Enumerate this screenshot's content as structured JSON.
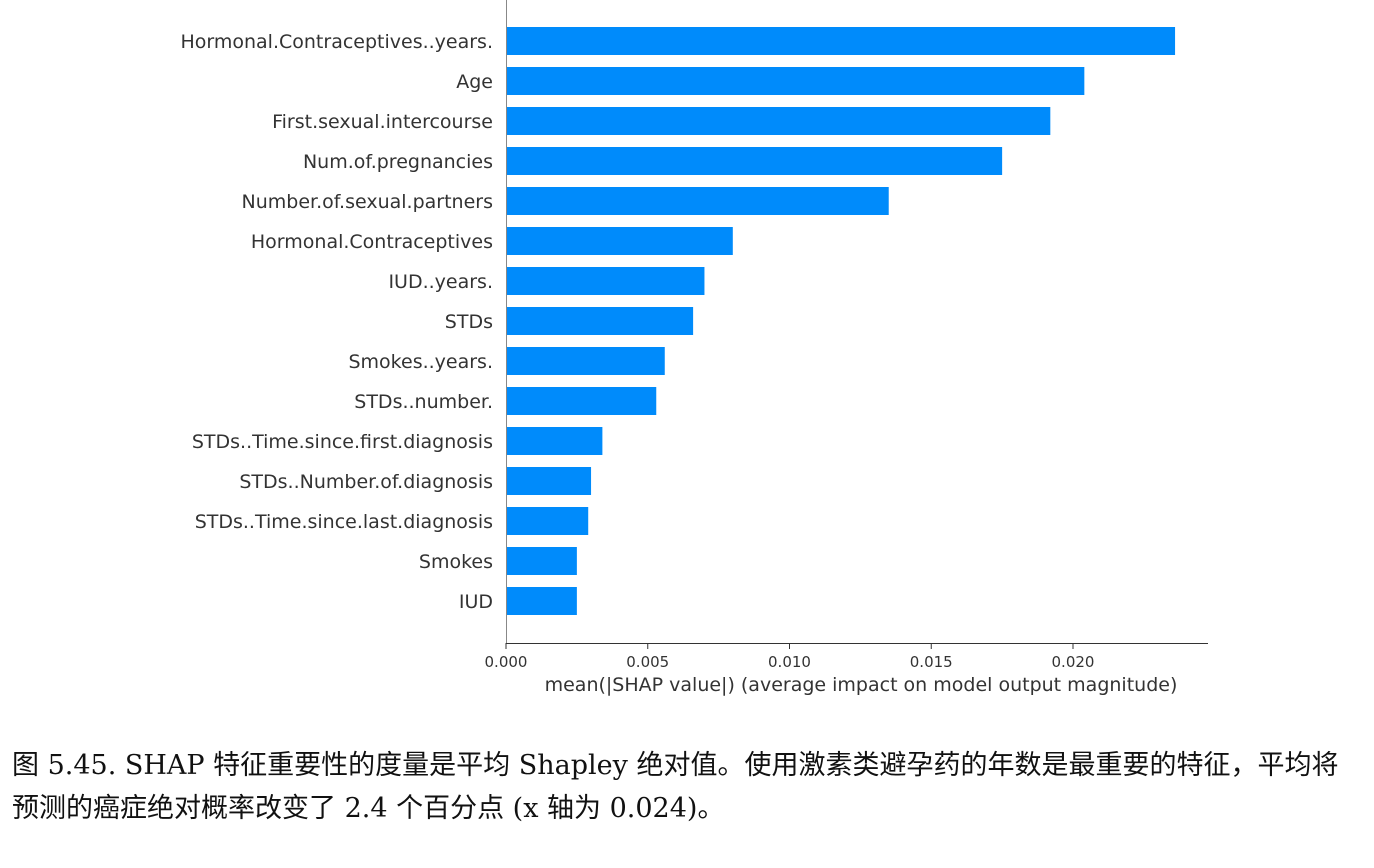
{
  "chart_data": {
    "type": "bar",
    "orientation": "horizontal",
    "categories": [
      "Hormonal.Contraceptives..years.",
      "Age",
      "First.sexual.intercourse",
      "Num.of.pregnancies",
      "Number.of.sexual.partners",
      "Hormonal.Contraceptives",
      "IUD..years.",
      "STDs",
      "Smokes..years.",
      "STDs..number.",
      "STDs..Time.since.first.diagnosis",
      "STDs..Number.of.diagnosis",
      "STDs..Time.since.last.diagnosis",
      "Smokes",
      "IUD"
    ],
    "values": [
      0.0236,
      0.0204,
      0.0192,
      0.0175,
      0.0135,
      0.008,
      0.007,
      0.0066,
      0.0056,
      0.0053,
      0.0034,
      0.003,
      0.0029,
      0.0025,
      0.0025
    ],
    "xlim": [
      0,
      0.025
    ],
    "xticks": [
      "0.000",
      "0.005",
      "0.010",
      "0.015",
      "0.020"
    ],
    "xtick_values": [
      0,
      0.005,
      0.01,
      0.015,
      0.02
    ],
    "xlabel": "mean(|SHAP value|) (average impact on model output magnitude)",
    "ylabel": "",
    "title": "",
    "bar_color": "#008bfb",
    "grid": false
  },
  "caption": {
    "text": "图 5.45.  SHAP 特征重要性的度量是平均 Shapley 绝对值。使用激素类避孕药的年数是最重要的特征，平均将预测的癌症绝对概率改变了 2.4 个百分点 (x 轴为 0.024)。"
  }
}
